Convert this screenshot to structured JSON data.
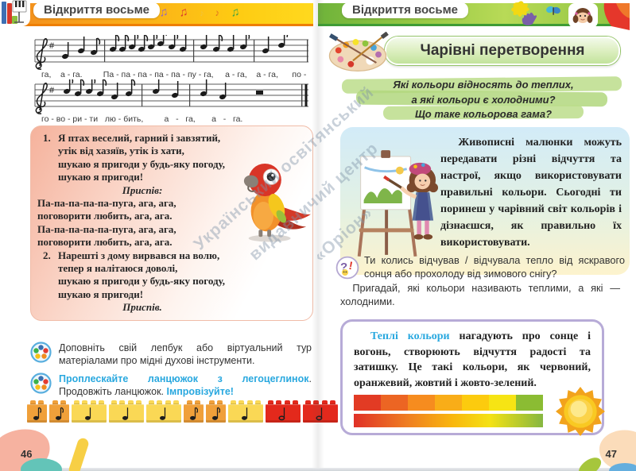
{
  "left_page": {
    "header": {
      "label": "Відкриття восьме"
    },
    "score": {
      "lyrics_line1": "га,    а - га.         Па - па - па - па - па - пу - га,     а - га,    а - га,      по -",
      "lyrics_line2": "го - во - ри - ти   лю - бить,         а   -   га,       а   -   га."
    },
    "song": {
      "verse1_num": "1.",
      "verse1_lines": [
        "Я птах веселий, гарний і завзятий,",
        "утік від хазяїв, утік із хати,",
        "шукаю я пригоди у будь-яку погоду,",
        "шукаю я пригоди!"
      ],
      "chorus_title": "Приспів:",
      "chorus_lines": [
        "Па-па-па-па-па-пуга, ага, ага,",
        "поговорити любить, ага, ага.",
        "Па-па-па-па-па-пуга, ага, ага,",
        "поговорити любить, ага, ага."
      ],
      "verse2_num": "2.",
      "verse2_lines": [
        "Нарешті з дому вирвався на волю,",
        "тепер я налітаюся доволі,",
        "шукаю я пригоди у будь-яку погоду,",
        "шукаю я пригоди!"
      ],
      "chorus_ref": "Приспів."
    },
    "tasks": {
      "task1_text": "Доповніть свій лепбук або віртуальний тур матеріалами про мідні духові інструменти.",
      "task2_blue1": "Проплескайте ланцюжок з легоцеглинок",
      "task2_dark1": ". Продовжіть ланцюжок. ",
      "task2_blue2": "Імпровізуйте!"
    },
    "bricks": [
      {
        "note": "eighth",
        "color": "#f0a03a",
        "size": "small"
      },
      {
        "note": "eighth",
        "color": "#f0a03a",
        "size": "small"
      },
      {
        "note": "quarter",
        "color": "#fad855",
        "size": "large"
      },
      {
        "note": "quarter",
        "color": "#fad855",
        "size": "large"
      },
      {
        "note": "quarter",
        "color": "#fad855",
        "size": "large"
      },
      {
        "note": "eighth",
        "color": "#f0a03a",
        "size": "small"
      },
      {
        "note": "eighth",
        "color": "#f0a03a",
        "size": "small"
      },
      {
        "note": "quarter",
        "color": "#fad855",
        "size": "large"
      },
      {
        "note": "half",
        "color": "#e3291c",
        "size": "large"
      },
      {
        "note": "half",
        "color": "#e3291c",
        "size": "large"
      }
    ],
    "page_number": "46"
  },
  "right_page": {
    "header": {
      "label": "Відкриття восьме"
    },
    "title": "Чарівні перетворення",
    "question_box_lines": [
      "Які кольори відносять до теплих,",
      "а які кольори є холодними?",
      "Що таке кольорова гама?"
    ],
    "intro_text": "Живописні малюнки мо­жуть передавати різні відчут­тя та настрої, якщо викорис­товувати правильні кольори. Сьогодні ти поринеш у чарів­ний світ кольорів і дізнаєш­ся, як правильно їх викорис­товувати.",
    "question_text_1": "Ти колись відчував / відчувала тепло від яскра­вого сонця або прохолоду від зимового снігу?",
    "question_text_2": "Пригадай, які кольори називають теплими, а які — холодними.",
    "warm_box": {
      "lead": "Теплі кольори",
      "text": " нагадують про сонце і вогонь, створюють відчуття радості та затишку. Це такі кольори, як червоний, оранжевий, жовтий і жовто-зелений.",
      "swatches": [
        "#e23b24",
        "#ec6523",
        "#f68c1f",
        "#f9ad18",
        "#fccb0e",
        "#f6e414",
        "#8bbc33"
      ]
    },
    "page_number": "47"
  },
  "watermark": {
    "line1": "Український освітянський",
    "line2": "видавничий центр",
    "line3": "«Оріон»"
  },
  "icons": {
    "task_icon": "color-wheel",
    "question_icon": "question-exclamation",
    "palette_icon": "paint-palette",
    "sun_icon": "sun",
    "parrot_illustration": "parrot",
    "girl_illustration": "girl-painting-at-easel"
  },
  "colors": {
    "accent_blue": "#29a8df",
    "left_header_orange": "#f28a1d",
    "right_header_green": "#6fb33a",
    "warm_border_purple": "#b7abd7"
  }
}
